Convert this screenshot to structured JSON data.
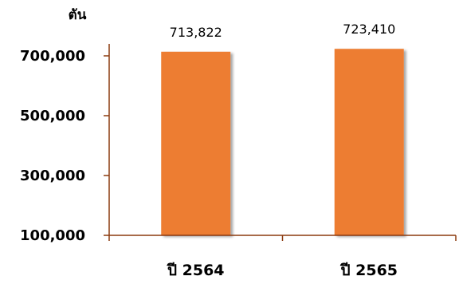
{
  "chart_data": {
    "type": "bar",
    "unit_label": "ตัน",
    "categories": [
      "ปี 2564",
      "ปี 2565"
    ],
    "values": [
      713822,
      723410
    ],
    "data_labels": [
      "713,822",
      "723,410"
    ],
    "yticks": [
      100000,
      300000,
      500000,
      700000
    ],
    "ytick_labels": [
      "100,000",
      "300,000",
      "500,000",
      "700,000"
    ],
    "ylim": [
      100000,
      760000
    ],
    "grid": false,
    "bar_color": "#ED7D31",
    "axis_color": "#8B3A0F"
  }
}
